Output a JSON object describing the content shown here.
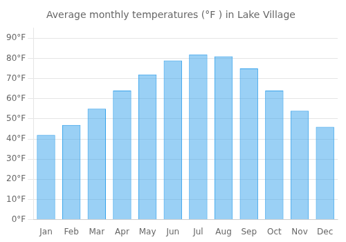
{
  "chart_data": {
    "type": "bar",
    "title": "Average monthly temperatures (°F ) in Lake Village",
    "categories": [
      "Jan",
      "Feb",
      "Mar",
      "Apr",
      "May",
      "Jun",
      "Jul",
      "Aug",
      "Sep",
      "Oct",
      "Nov",
      "Dec"
    ],
    "values": [
      42,
      47,
      55,
      64,
      72,
      79,
      82,
      81,
      75,
      64,
      54,
      46
    ],
    "ylim": [
      0,
      95
    ],
    "yticks": [
      {
        "value": 0,
        "label": "0°F"
      },
      {
        "value": 10,
        "label": "10°F"
      },
      {
        "value": 20,
        "label": "20°F"
      },
      {
        "value": 30,
        "label": "30°F"
      },
      {
        "value": 40,
        "label": "40°F"
      },
      {
        "value": 50,
        "label": "50°F"
      },
      {
        "value": 60,
        "label": "60°F"
      },
      {
        "value": 70,
        "label": "70°F"
      },
      {
        "value": 80,
        "label": "80°F"
      },
      {
        "value": 90,
        "label": "90°F"
      }
    ],
    "grid": true
  }
}
